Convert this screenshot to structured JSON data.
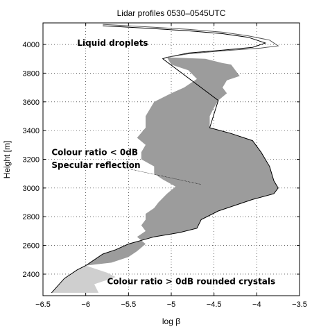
{
  "chart_data": {
    "type": "area",
    "title": "Lidar profiles 0530–0545UTC",
    "xlabel": "log β",
    "ylabel": "Height [m]",
    "xlim": [
      -6.5,
      -3.5
    ],
    "ylim": [
      2250,
      4150
    ],
    "xticks": [
      -6.5,
      -6,
      -5.5,
      -5,
      -4.5,
      -4,
      -3.5
    ],
    "xtick_labels": [
      "−6.5",
      "−6",
      "−5.5",
      "−5",
      "−4.5",
      "−4",
      "−3.5"
    ],
    "yticks": [
      2400,
      2600,
      2800,
      3000,
      3200,
      3400,
      3600,
      3800,
      4000
    ],
    "ytick_labels": [
      "2400",
      "2600",
      "2800",
      "3000",
      "3200",
      "3400",
      "3600",
      "3800",
      "4000"
    ],
    "grid": true,
    "series": [
      {
        "color": "#000000",
        "points": [
          [
            -5.8,
            4130
          ],
          [
            -5.2,
            4110
          ],
          [
            -4.8,
            4095
          ],
          [
            -4.4,
            4075
          ],
          [
            -4.1,
            4050
          ],
          [
            -3.9,
            4010
          ],
          [
            -4.05,
            3980
          ],
          [
            -4.4,
            3960
          ],
          [
            -4.8,
            3940
          ],
          [
            -5.05,
            3910
          ],
          [
            -5.1,
            3900
          ],
          [
            -4.45,
            3610
          ],
          [
            -4.55,
            3420
          ],
          [
            -4.3,
            3380
          ],
          [
            -4.05,
            3330
          ],
          [
            -3.95,
            3250
          ],
          [
            -3.85,
            3150
          ],
          [
            -3.8,
            3050
          ],
          [
            -3.75,
            3000
          ],
          [
            -3.8,
            2960
          ],
          [
            -4.05,
            2920
          ],
          [
            -4.45,
            2840
          ],
          [
            -4.65,
            2780
          ],
          [
            -4.7,
            2720
          ],
          [
            -4.9,
            2690
          ],
          [
            -5.2,
            2660
          ],
          [
            -5.5,
            2610
          ],
          [
            -5.65,
            2570
          ],
          [
            -5.8,
            2540
          ],
          [
            -6.0,
            2460
          ],
          [
            -6.1,
            2430
          ],
          [
            -6.25,
            2370
          ],
          [
            -6.4,
            2270
          ]
        ]
      },
      {
        "color": "#555555",
        "points": [
          [
            -5.8,
            4140
          ],
          [
            -5.2,
            4120
          ],
          [
            -4.8,
            4105
          ],
          [
            -4.4,
            4085
          ],
          [
            -4.1,
            4060
          ],
          [
            -3.85,
            4030
          ],
          [
            -3.75,
            3990
          ],
          [
            -3.95,
            3975
          ],
          [
            -4.4,
            3955
          ],
          [
            -4.8,
            3935
          ],
          [
            -5.05,
            3910
          ]
        ]
      }
    ],
    "shaded_region": {
      "fill": "#9c9c9c",
      "boundary_points": [
        [
          -5.05,
          3910
        ],
        [
          -4.6,
          3900
        ],
        [
          -4.4,
          3870
        ],
        [
          -4.3,
          3860
        ],
        [
          -4.25,
          3820
        ],
        [
          -4.2,
          3780
        ],
        [
          -4.35,
          3750
        ],
        [
          -4.4,
          3700
        ],
        [
          -4.35,
          3660
        ],
        [
          -4.45,
          3610
        ],
        [
          -4.5,
          3560
        ],
        [
          -4.55,
          3500
        ],
        [
          -4.55,
          3420
        ],
        [
          -4.3,
          3380
        ],
        [
          -4.05,
          3330
        ],
        [
          -3.95,
          3250
        ],
        [
          -3.85,
          3150
        ],
        [
          -3.8,
          3050
        ],
        [
          -3.75,
          3000
        ],
        [
          -3.8,
          2960
        ],
        [
          -4.05,
          2920
        ],
        [
          -4.45,
          2840
        ],
        [
          -4.65,
          2780
        ],
        [
          -4.7,
          2720
        ],
        [
          -4.9,
          2690
        ],
        [
          -5.2,
          2660
        ],
        [
          -5.5,
          2610
        ],
        [
          -5.65,
          2570
        ],
        [
          -5.8,
          2540
        ],
        [
          -6.0,
          2460
        ],
        [
          -5.7,
          2480
        ],
        [
          -5.5,
          2520
        ],
        [
          -5.4,
          2560
        ],
        [
          -5.3,
          2610
        ],
        [
          -5.4,
          2660
        ],
        [
          -5.3,
          2700
        ],
        [
          -5.35,
          2740
        ],
        [
          -5.3,
          2780
        ],
        [
          -5.3,
          2820
        ],
        [
          -5.2,
          2860
        ],
        [
          -5.15,
          2900
        ],
        [
          -5.05,
          2960
        ],
        [
          -4.95,
          3010
        ],
        [
          -5.1,
          3060
        ],
        [
          -5.2,
          3100
        ],
        [
          -5.2,
          3150
        ],
        [
          -5.35,
          3200
        ],
        [
          -5.35,
          3250
        ],
        [
          -5.3,
          3300
        ],
        [
          -5.4,
          3350
        ],
        [
          -5.3,
          3420
        ],
        [
          -5.3,
          3500
        ],
        [
          -5.2,
          3600
        ],
        [
          -5.0,
          3660
        ],
        [
          -4.85,
          3700
        ],
        [
          -4.7,
          3760
        ],
        [
          -4.8,
          3820
        ],
        [
          -5.0,
          3860
        ]
      ]
    },
    "light_region": {
      "fill": "#cfcfcf",
      "boundary_points": [
        [
          -6.0,
          2460
        ],
        [
          -6.1,
          2430
        ],
        [
          -6.25,
          2370
        ],
        [
          -6.4,
          2270
        ],
        [
          -5.85,
          2270
        ],
        [
          -5.9,
          2330
        ],
        [
          -5.65,
          2380
        ],
        [
          -5.75,
          2410
        ]
      ]
    },
    "annotations": [
      {
        "text": "Liquid droplets",
        "x": -6.1,
        "y": 3990
      },
      {
        "text": "Colour ratio < 0dB",
        "x": -6.4,
        "y": 3230
      },
      {
        "text": "Specular reflection",
        "x": -6.4,
        "y": 3140
      },
      {
        "text": "Colour ratio > 0dB rounded crystals",
        "x": -5.75,
        "y": 2330
      }
    ],
    "leader_line": {
      "from": [
        -5.55,
        3140
      ],
      "to": [
        -4.65,
        3025
      ]
    }
  }
}
